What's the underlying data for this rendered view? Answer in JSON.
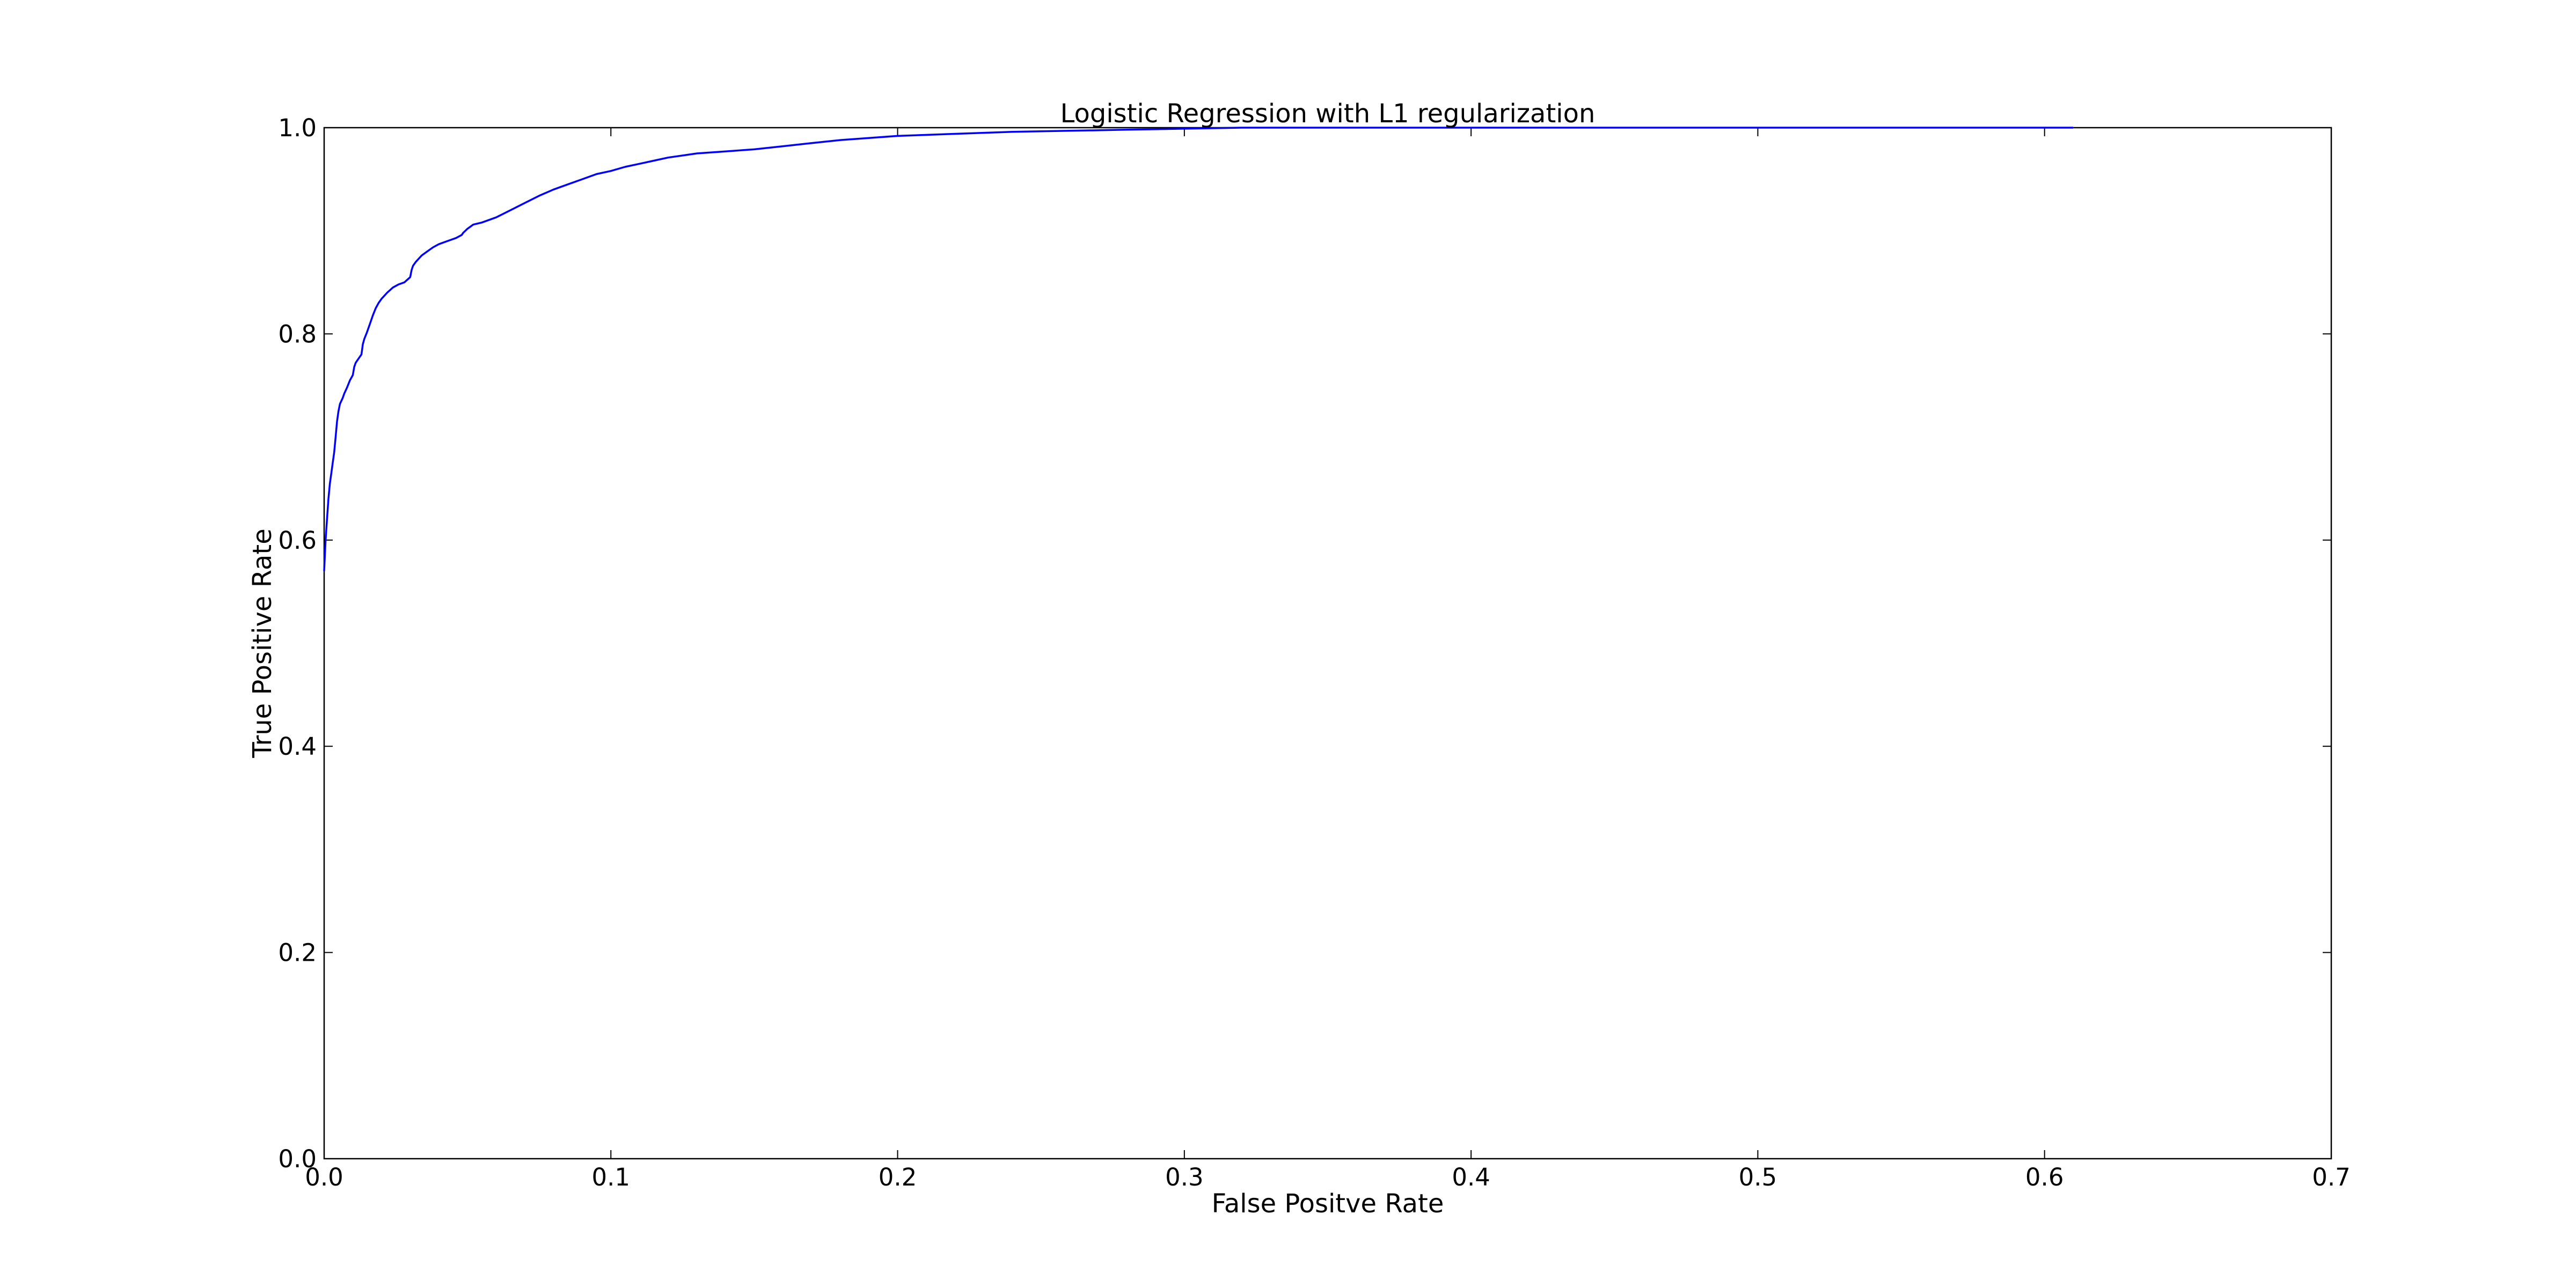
{
  "chart_data": {
    "type": "line",
    "title": "Logistic Regression with L1 regularization",
    "xlabel": "False Positve Rate",
    "ylabel": "True Positive Rate",
    "xlim": [
      0.0,
      0.7
    ],
    "ylim": [
      0.0,
      1.0
    ],
    "x_ticks": [
      {
        "value": 0.0,
        "label": "0.0"
      },
      {
        "value": 0.1,
        "label": "0.1"
      },
      {
        "value": 0.2,
        "label": "0.2"
      },
      {
        "value": 0.3,
        "label": "0.3"
      },
      {
        "value": 0.4,
        "label": "0.4"
      },
      {
        "value": 0.5,
        "label": "0.5"
      },
      {
        "value": 0.6,
        "label": "0.6"
      },
      {
        "value": 0.7,
        "label": "0.7"
      }
    ],
    "y_ticks": [
      {
        "value": 0.0,
        "label": "0.0"
      },
      {
        "value": 0.2,
        "label": "0.2"
      },
      {
        "value": 0.4,
        "label": "0.4"
      },
      {
        "value": 0.6,
        "label": "0.6"
      },
      {
        "value": 0.8,
        "label": "0.8"
      },
      {
        "value": 1.0,
        "label": "1.0"
      }
    ],
    "grid": false,
    "legend": "none",
    "series": [
      {
        "color": "#0000ff",
        "x": [
          0.0,
          0.0005,
          0.001,
          0.0015,
          0.002,
          0.0025,
          0.003,
          0.0035,
          0.004,
          0.0045,
          0.005,
          0.0055,
          0.006,
          0.0065,
          0.007,
          0.008,
          0.009,
          0.01,
          0.0105,
          0.011,
          0.012,
          0.013,
          0.0135,
          0.014,
          0.015,
          0.016,
          0.017,
          0.018,
          0.019,
          0.02,
          0.022,
          0.024,
          0.026,
          0.028,
          0.03,
          0.0305,
          0.031,
          0.032,
          0.034,
          0.036,
          0.038,
          0.04,
          0.043,
          0.046,
          0.048,
          0.0485,
          0.05,
          0.052,
          0.055,
          0.06,
          0.065,
          0.07,
          0.075,
          0.08,
          0.085,
          0.09,
          0.095,
          0.1,
          0.105,
          0.11,
          0.115,
          0.12,
          0.125,
          0.13,
          0.14,
          0.15,
          0.16,
          0.17,
          0.18,
          0.19,
          0.2,
          0.22,
          0.24,
          0.26,
          0.28,
          0.3,
          0.32,
          0.35,
          0.4,
          0.5,
          0.61
        ],
        "y": [
          0.57,
          0.6,
          0.62,
          0.64,
          0.655,
          0.665,
          0.675,
          0.685,
          0.7,
          0.715,
          0.725,
          0.732,
          0.735,
          0.738,
          0.742,
          0.748,
          0.755,
          0.76,
          0.768,
          0.772,
          0.776,
          0.78,
          0.79,
          0.795,
          0.802,
          0.81,
          0.818,
          0.825,
          0.83,
          0.834,
          0.84,
          0.845,
          0.848,
          0.85,
          0.855,
          0.862,
          0.866,
          0.87,
          0.876,
          0.88,
          0.884,
          0.887,
          0.89,
          0.893,
          0.896,
          0.898,
          0.902,
          0.906,
          0.908,
          0.913,
          0.92,
          0.927,
          0.934,
          0.94,
          0.945,
          0.95,
          0.955,
          0.958,
          0.962,
          0.965,
          0.968,
          0.971,
          0.973,
          0.975,
          0.977,
          0.979,
          0.982,
          0.985,
          0.988,
          0.99,
          0.992,
          0.994,
          0.996,
          0.997,
          0.998,
          0.999,
          1.0,
          1.0,
          1.0,
          1.0,
          1.0
        ]
      }
    ]
  }
}
